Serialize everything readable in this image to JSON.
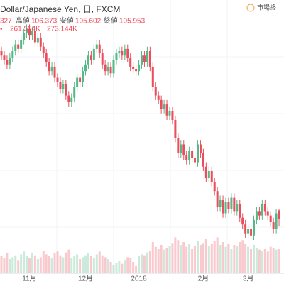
{
  "chart_data": {
    "type": "candlestick",
    "title": "Dollar/Japanese Yen, 日, FXCM",
    "status": "市場終",
    "open_tail": "327",
    "high_label": "高値",
    "low_label": "安値",
    "close_label": "終値",
    "volume_legend": [
      "261.554K",
      "273.144K"
    ],
    "up_color": "#53b987",
    "down_color": "#eb4d5c",
    "ylim": [
      103.5,
      115.8
    ],
    "y2lim": [
      0,
      600
    ],
    "categories": [
      null,
      null,
      null,
      null,
      null,
      null,
      null,
      null,
      null,
      null,
      "11月",
      null,
      null,
      null,
      null,
      null,
      null,
      null,
      null,
      null,
      null,
      null,
      null,
      null,
      null,
      null,
      null,
      null,
      null,
      null,
      "12月",
      null,
      null,
      null,
      null,
      null,
      null,
      null,
      null,
      null,
      null,
      null,
      null,
      null,
      null,
      null,
      null,
      null,
      null,
      "2018",
      null,
      null,
      null,
      null,
      null,
      null,
      null,
      null,
      null,
      null,
      null,
      null,
      null,
      null,
      null,
      null,
      null,
      null,
      null,
      null,
      null,
      null,
      "2月",
      null,
      null,
      null,
      null,
      null,
      null,
      null,
      null,
      null,
      null,
      null,
      null,
      null,
      null,
      null,
      "3月",
      null,
      null,
      null,
      null,
      null,
      null,
      null,
      null,
      null,
      null,
      null
    ],
    "open": [
      113.5,
      113.3,
      113.1,
      112.9,
      113.2,
      113.5,
      113.8,
      113.6,
      114.0,
      114.3,
      114.5,
      114.2,
      114.4,
      113.9,
      114.1,
      113.7,
      113.4,
      113.0,
      112.6,
      112.8,
      112.3,
      112.1,
      111.8,
      112.0,
      111.5,
      111.2,
      111.4,
      111.9,
      112.3,
      112.1,
      112.6,
      112.9,
      113.3,
      113.1,
      113.6,
      113.8,
      113.4,
      112.9,
      112.6,
      112.8,
      112.5,
      113.1,
      113.4,
      113.5,
      113.3,
      113.6,
      113.2,
      112.8,
      112.7,
      112.6,
      112.9,
      113.3,
      113.0,
      113.5,
      112.8,
      111.9,
      111.5,
      111.3,
      110.9,
      111.1,
      110.6,
      110.8,
      110.4,
      109.6,
      108.9,
      109.3,
      108.8,
      108.6,
      109.0,
      108.7,
      108.5,
      109.3,
      108.9,
      108.3,
      107.8,
      108.1,
      107.6,
      107.2,
      106.5,
      106.8,
      106.2,
      106.7,
      106.4,
      106.9,
      106.3,
      106.6,
      106.0,
      105.7,
      105.3,
      105.5,
      105.2,
      105.9,
      106.3,
      106.1,
      106.6,
      106.3,
      106.1,
      105.8,
      105.5,
      106.327
    ],
    "high": [
      113.7,
      113.5,
      113.3,
      113.4,
      113.7,
      114.0,
      114.0,
      114.2,
      114.5,
      114.7,
      114.7,
      114.6,
      114.6,
      114.3,
      114.3,
      113.9,
      113.6,
      113.2,
      113.0,
      113.0,
      112.5,
      112.3,
      112.2,
      112.2,
      111.7,
      111.6,
      112.1,
      112.5,
      112.5,
      112.8,
      113.1,
      113.5,
      113.5,
      113.8,
      114.0,
      114.0,
      113.6,
      113.1,
      113.0,
      113.0,
      113.3,
      113.6,
      113.7,
      113.7,
      113.8,
      113.8,
      113.4,
      113.0,
      112.9,
      113.1,
      113.5,
      113.5,
      113.7,
      113.7,
      113.0,
      112.1,
      111.7,
      111.5,
      111.3,
      111.3,
      111.0,
      111.0,
      110.6,
      109.8,
      109.5,
      109.5,
      109.0,
      109.2,
      109.2,
      108.9,
      109.5,
      109.5,
      109.1,
      108.5,
      108.3,
      108.3,
      107.8,
      107.4,
      107.0,
      107.0,
      106.9,
      106.9,
      107.1,
      107.1,
      106.8,
      106.8,
      106.2,
      105.9,
      105.7,
      105.7,
      106.1,
      106.5,
      106.5,
      106.8,
      106.8,
      106.5,
      106.3,
      106.0,
      106.4,
      106.373
    ],
    "low": [
      113.1,
      112.9,
      112.7,
      112.7,
      113.0,
      113.3,
      113.4,
      113.4,
      113.8,
      114.1,
      114.0,
      114.0,
      113.7,
      113.7,
      113.5,
      113.2,
      112.8,
      112.4,
      112.4,
      112.1,
      111.9,
      111.6,
      111.6,
      111.3,
      111.0,
      111.0,
      111.2,
      111.7,
      111.9,
      111.9,
      112.4,
      112.7,
      112.9,
      112.9,
      113.4,
      113.2,
      112.7,
      112.4,
      112.4,
      112.3,
      112.3,
      112.9,
      113.2,
      113.1,
      113.1,
      113.0,
      112.6,
      112.5,
      112.4,
      112.4,
      112.7,
      112.8,
      112.8,
      112.6,
      111.7,
      111.3,
      111.1,
      110.7,
      110.7,
      110.4,
      110.4,
      110.2,
      109.4,
      108.7,
      108.7,
      108.6,
      108.4,
      108.4,
      108.5,
      108.3,
      108.3,
      108.7,
      108.1,
      107.6,
      107.6,
      107.4,
      107.0,
      106.3,
      106.3,
      106.0,
      106.0,
      106.2,
      106.2,
      106.1,
      106.1,
      105.8,
      105.5,
      105.1,
      105.1,
      105.0,
      105.0,
      105.7,
      105.9,
      105.9,
      106.1,
      105.9,
      105.6,
      105.3,
      105.3,
      105.602
    ],
    "close": [
      113.3,
      113.1,
      112.9,
      113.2,
      113.5,
      113.8,
      113.6,
      114.0,
      114.3,
      114.5,
      114.2,
      114.4,
      113.9,
      114.1,
      113.7,
      113.4,
      113.0,
      112.6,
      112.8,
      112.3,
      112.1,
      111.8,
      112.0,
      111.5,
      111.2,
      111.4,
      111.9,
      112.3,
      112.1,
      112.6,
      112.9,
      113.3,
      113.1,
      113.6,
      113.8,
      113.4,
      112.9,
      112.6,
      112.8,
      112.5,
      113.1,
      113.4,
      113.5,
      113.3,
      113.6,
      113.2,
      112.8,
      112.7,
      112.6,
      112.9,
      113.3,
      113.0,
      113.5,
      112.8,
      111.9,
      111.5,
      111.3,
      110.9,
      111.1,
      110.6,
      110.8,
      110.4,
      109.6,
      108.9,
      109.3,
      108.8,
      108.6,
      109.0,
      108.7,
      108.5,
      109.3,
      108.9,
      108.3,
      107.8,
      108.1,
      107.6,
      107.2,
      106.5,
      106.8,
      106.2,
      106.7,
      106.4,
      106.9,
      106.3,
      106.6,
      106.0,
      105.7,
      105.3,
      105.5,
      105.2,
      105.9,
      106.3,
      106.1,
      106.6,
      106.3,
      106.1,
      105.8,
      105.5,
      106.2,
      105.953
    ],
    "volume": [
      180,
      160,
      210,
      150,
      170,
      190,
      140,
      200,
      230,
      180,
      160,
      210,
      190,
      150,
      170,
      240,
      200,
      180,
      160,
      210,
      230,
      190,
      170,
      220,
      250,
      160,
      180,
      200,
      150,
      170,
      190,
      210,
      180,
      160,
      200,
      230,
      190,
      170,
      150,
      120,
      90,
      110,
      130,
      100,
      140,
      170,
      160,
      120,
      80,
      180,
      200,
      190,
      220,
      240,
      330,
      280,
      260,
      300,
      250,
      270,
      290,
      320,
      380,
      350,
      300,
      330,
      280,
      310,
      260,
      290,
      340,
      300,
      320,
      360,
      290,
      310,
      340,
      380,
      300,
      330,
      280,
      310,
      260,
      300,
      290,
      330,
      350,
      310,
      280,
      260,
      300,
      270,
      250,
      240,
      260,
      230,
      280,
      270,
      250,
      261.554
    ]
  }
}
